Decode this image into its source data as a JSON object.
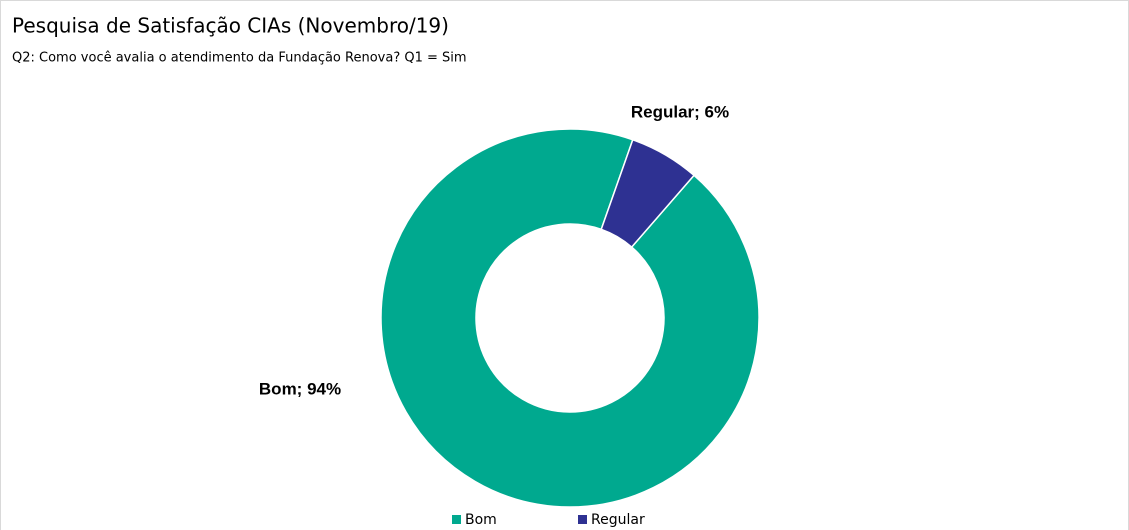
{
  "chart_data": {
    "type": "donut",
    "title": "Pesquisa de Satisfação CIAs (Novembro/19)",
    "subtitle": "Q2: Como você avalia o atendimento da Fundação Renova? Q1 = Sim",
    "categories": [
      "Bom",
      "Regular"
    ],
    "values": [
      94,
      6
    ],
    "value_labels": [
      "Bom; 94%",
      "Regular; 6%"
    ],
    "colors": [
      "#00a98f",
      "#2e3192"
    ],
    "legend": "bottom"
  }
}
